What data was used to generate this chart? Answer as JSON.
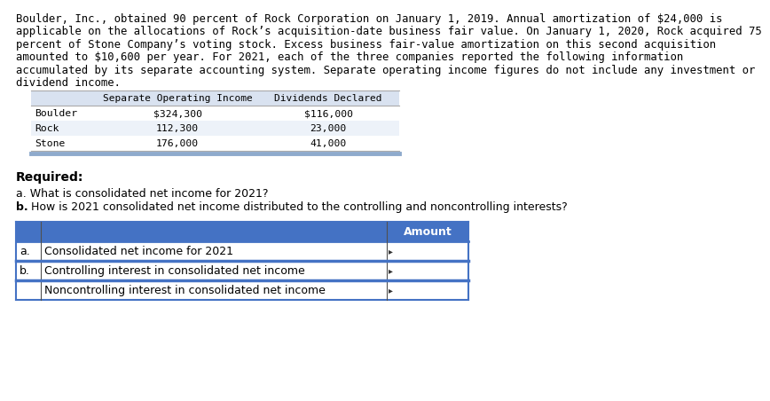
{
  "para_lines": [
    "Boulder, Inc., obtained 90 percent of Rock Corporation on January 1, 2019. Annual amortization of $24,000 is",
    "applicable on the allocations of Rock’s acquisition-date business fair value. On January 1, 2020, Rock acquired 75",
    "percent of Stone Company’s voting stock. Excess business fair-value amortization on this second acquisition",
    "amounted to $10,600 per year. For 2021, each of the three companies reported the following information",
    "accumulated by its separate accounting system. Separate operating income figures do not include any investment or",
    "dividend income."
  ],
  "table1_col_header": [
    "Separate Operating Income",
    "Dividends Declared"
  ],
  "table1_rows": [
    [
      "Boulder",
      "$324,300",
      "$116,000"
    ],
    [
      "Rock",
      "112,300",
      "23,000"
    ],
    [
      "Stone",
      "176,000",
      "41,000"
    ]
  ],
  "required_label": "Required:",
  "question_a": "a. What is consolidated net income for 2021?",
  "question_b_bold": "b.",
  "question_b_rest": " How is 2021 consolidated net income distributed to the controlling and noncontrolling interests?",
  "table2_header_amount": "Amount",
  "table2_rows": [
    [
      "a.",
      "Consolidated net income for 2021"
    ],
    [
      "b.",
      "Controlling interest in consolidated net income"
    ],
    [
      "",
      "Noncontrolling interest in consolidated net income"
    ]
  ],
  "t1_header_bg": "#d9e2f0",
  "t1_row_alt_bg": "#edf2f9",
  "t1_row_white": "#ffffff",
  "t1_bottom_line": "#8eaacc",
  "t2_header_bg": "#4472c4",
  "t2_header_text": "#ffffff",
  "t2_row_white": "#ffffff",
  "t2_row_blue": "#c5d9f1",
  "t2_border": "#4472c4",
  "t2_inner_border": "#808080",
  "bg_color": "#ffffff",
  "font_color": "#000000"
}
